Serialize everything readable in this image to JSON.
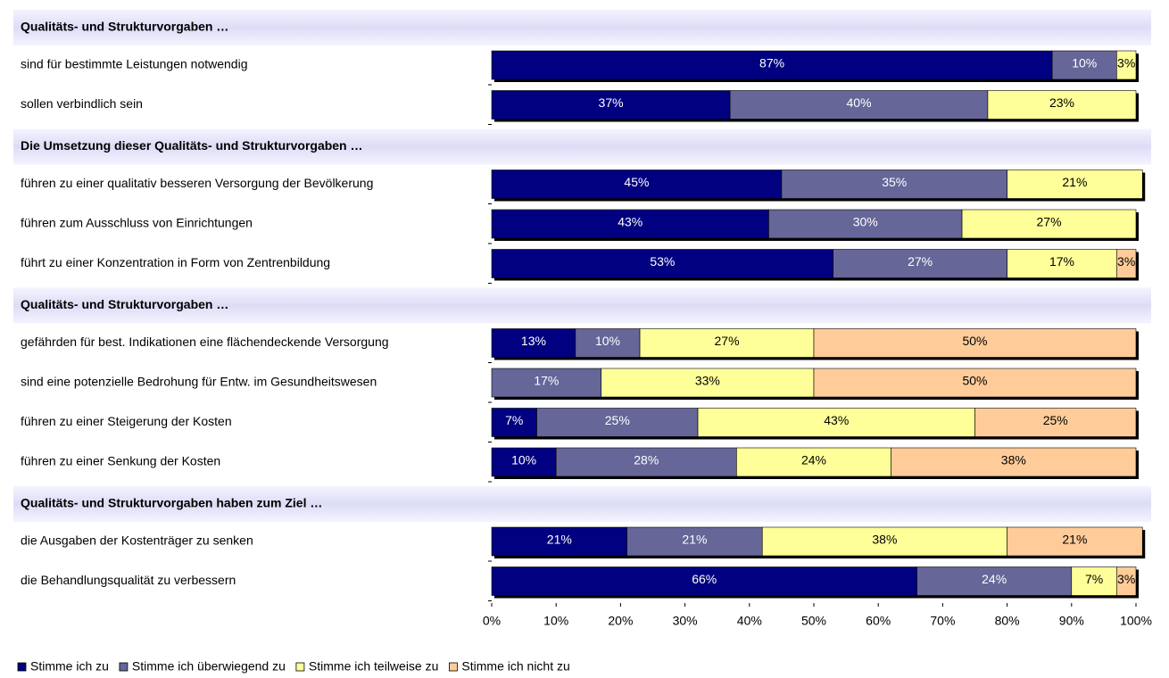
{
  "chart_data": {
    "type": "bar",
    "orientation": "horizontal",
    "stacked": true,
    "sections": [
      {
        "title": "Qualitäts- und Strukturvorgaben …",
        "categories": [
          "sind für bestimmte Leistungen notwendig",
          "sollen verbindlich sein"
        ]
      },
      {
        "title": "Die Umsetzung dieser Qualitäts- und Strukturvorgaben …",
        "categories": [
          "führen zu einer qualitativ besseren Versorgung der Bevölkerung",
          "führen zum Ausschluss von Einrichtungen",
          "führt zu einer Konzentration in Form von Zentrenbildung"
        ]
      },
      {
        "title": "Qualitäts- und Strukturvorgaben …",
        "categories": [
          "gefährden für best. Indikationen eine flächendeckende Versorgung",
          "sind eine potenzielle Bedrohung für Entw. im Gesundheitswesen",
          "führen zu einer Steigerung der Kosten",
          "führen zu einer Senkung der Kosten"
        ]
      },
      {
        "title": "Qualitäts- und Strukturvorgaben haben zum Ziel …",
        "categories": [
          "die Ausgaben der Kostenträger zu senken",
          "die Behandlungsqualität zu verbessern"
        ]
      }
    ],
    "series": [
      {
        "name": "Stimme ich zu",
        "color": "#000080",
        "values": [
          87,
          37,
          45,
          43,
          53,
          13,
          null,
          7,
          10,
          21,
          66
        ],
        "value_labels": [
          "87%",
          "37%",
          "45%",
          "43%",
          "53%",
          "13%",
          null,
          "7%",
          "10%",
          "21%",
          "66%"
        ]
      },
      {
        "name": "Stimme ich überwiegend zu",
        "color": "#666699",
        "values": [
          10,
          40,
          35,
          30,
          27,
          10,
          17,
          25,
          28,
          21,
          24
        ],
        "value_labels": [
          "10%",
          "40%",
          "35%",
          "30%",
          "27%",
          "10%",
          "17%",
          "25%",
          "28%",
          "21%",
          "24%"
        ]
      },
      {
        "name": "Stimme ich teilweise zu",
        "color": "#ffff99",
        "values": [
          3,
          23,
          21,
          27,
          17,
          27,
          33,
          43,
          24,
          38,
          7
        ],
        "value_labels": [
          "3%",
          "23%",
          "21%",
          "27%",
          "17%",
          "27%",
          "33%",
          "43%",
          "24%",
          "38%",
          "7%"
        ]
      },
      {
        "name": "Stimme ich nicht zu",
        "color": "#ffcc99",
        "values": [
          null,
          null,
          null,
          null,
          3,
          50,
          50,
          25,
          38,
          21,
          3
        ],
        "value_labels": [
          null,
          null,
          null,
          null,
          "3%",
          "50%",
          "50%",
          "25%",
          "38%",
          "21%",
          "3%"
        ]
      }
    ],
    "xlim": [
      0,
      100
    ],
    "xticks": [
      {
        "value": 0,
        "label": "0%"
      },
      {
        "value": 10,
        "label": "10%"
      },
      {
        "value": 20,
        "label": "20%"
      },
      {
        "value": 30,
        "label": "30%"
      },
      {
        "value": 40,
        "label": "40%"
      },
      {
        "value": 50,
        "label": "50%"
      },
      {
        "value": 60,
        "label": "60%"
      },
      {
        "value": 70,
        "label": "70%"
      },
      {
        "value": 80,
        "label": "80%"
      },
      {
        "value": 90,
        "label": "90%"
      },
      {
        "value": 100,
        "label": "100%"
      }
    ],
    "legend": "bottom-left"
  }
}
